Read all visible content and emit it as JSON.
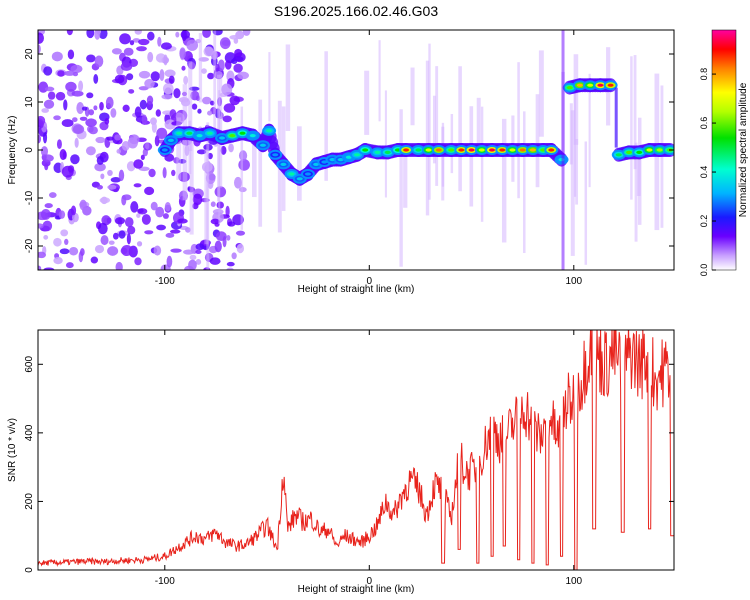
{
  "title": "S196.2025.166.02.46.G03",
  "chart_data": [
    {
      "type": "heatmap",
      "xlabel": "Height of straight line (km)",
      "ylabel": "Frequency (Hz)",
      "xlim": [
        -162,
        149
      ],
      "ylim": [
        -25,
        25
      ],
      "xticks": [
        "-100",
        "0",
        "100"
      ],
      "yticks": [
        "-20",
        "-10",
        "0",
        "10",
        "20"
      ],
      "xtick_values": [
        -100,
        0,
        100
      ],
      "ytick_values": [
        -20,
        -10,
        0,
        10,
        20
      ],
      "colorbar": {
        "label": "Normalized spectral amplitude",
        "ticks": [
          "0.0",
          "0.2",
          "0.4",
          "0.6",
          "0.8"
        ],
        "tick_values": [
          0.0,
          0.2,
          0.4,
          0.6,
          0.8
        ],
        "range": [
          0,
          0.98
        ]
      },
      "ridge": [
        {
          "x": -100,
          "y": 0,
          "amp": 0.3
        },
        {
          "x": -97,
          "y": 2,
          "amp": 0.35
        },
        {
          "x": -93,
          "y": 3.5,
          "amp": 0.45
        },
        {
          "x": -88,
          "y": 3.5,
          "amp": 0.5
        },
        {
          "x": -83,
          "y": 3,
          "amp": 0.4
        },
        {
          "x": -78,
          "y": 3.5,
          "amp": 0.45
        },
        {
          "x": -72,
          "y": 2.5,
          "amp": 0.35
        },
        {
          "x": -67,
          "y": 3,
          "amp": 0.6
        },
        {
          "x": -62,
          "y": 3.5,
          "amp": 0.55
        },
        {
          "x": -57,
          "y": 3,
          "amp": 0.4
        },
        {
          "x": -52,
          "y": 1,
          "amp": 0.35
        },
        {
          "x": -49,
          "y": 4,
          "amp": 0.45
        },
        {
          "x": -46,
          "y": -1,
          "amp": 0.3
        },
        {
          "x": -42,
          "y": -3,
          "amp": 0.35
        },
        {
          "x": -38,
          "y": -5,
          "amp": 0.45
        },
        {
          "x": -34,
          "y": -6,
          "amp": 0.35
        },
        {
          "x": -30,
          "y": -5,
          "amp": 0.3
        },
        {
          "x": -26,
          "y": -3,
          "amp": 0.35
        },
        {
          "x": -22,
          "y": -2.5,
          "amp": 0.3
        },
        {
          "x": -18,
          "y": -2,
          "amp": 0.35
        },
        {
          "x": -14,
          "y": -2,
          "amp": 0.35
        },
        {
          "x": -10,
          "y": -1.5,
          "amp": 0.4
        },
        {
          "x": -6,
          "y": -1,
          "amp": 0.45
        },
        {
          "x": -2,
          "y": 0,
          "amp": 0.55
        },
        {
          "x": 4,
          "y": -0.5,
          "amp": 0.45
        },
        {
          "x": 9,
          "y": -0.5,
          "amp": 0.5
        },
        {
          "x": 14,
          "y": 0,
          "amp": 0.55
        },
        {
          "x": 18,
          "y": 0,
          "amp": 0.9
        },
        {
          "x": 24,
          "y": 0,
          "amp": 0.5
        },
        {
          "x": 29,
          "y": 0,
          "amp": 0.7
        },
        {
          "x": 34,
          "y": 0,
          "amp": 0.85
        },
        {
          "x": 40,
          "y": 0,
          "amp": 0.6
        },
        {
          "x": 45,
          "y": 0,
          "amp": 0.9
        },
        {
          "x": 50,
          "y": 0,
          "amp": 0.95
        },
        {
          "x": 55,
          "y": 0,
          "amp": 0.7
        },
        {
          "x": 60,
          "y": 0,
          "amp": 0.95
        },
        {
          "x": 65,
          "y": 0,
          "amp": 0.9
        },
        {
          "x": 70,
          "y": 0,
          "amp": 0.7
        },
        {
          "x": 75,
          "y": 0,
          "amp": 0.85
        },
        {
          "x": 80,
          "y": 0,
          "amp": 0.8
        },
        {
          "x": 85,
          "y": 0,
          "amp": 0.6
        },
        {
          "x": 89,
          "y": 0,
          "amp": 0.9
        },
        {
          "x": 94,
          "y": -2,
          "amp": 0.4
        },
        {
          "x": 98,
          "y": 13,
          "amp": 0.6
        },
        {
          "x": 103,
          "y": 13.5,
          "amp": 0.8
        },
        {
          "x": 108,
          "y": 13.5,
          "amp": 0.7
        },
        {
          "x": 113,
          "y": 13.5,
          "amp": 0.95
        },
        {
          "x": 118,
          "y": 13.5,
          "amp": 0.9
        },
        {
          "x": 122,
          "y": -1,
          "amp": 0.5
        },
        {
          "x": 127,
          "y": -0.5,
          "amp": 0.6
        },
        {
          "x": 132,
          "y": -0.5,
          "amp": 0.55
        },
        {
          "x": 137,
          "y": 0,
          "amp": 0.7
        },
        {
          "x": 142,
          "y": 0,
          "amp": 0.65
        },
        {
          "x": 147,
          "y": 0,
          "amp": 0.6
        }
      ]
    },
    {
      "type": "line",
      "xlabel": "Height of straight line (km)",
      "ylabel": "SNR (10 * v/v)",
      "xlim": [
        -162,
        149
      ],
      "ylim": [
        0,
        700
      ],
      "xticks": [
        "-100",
        "0",
        "100"
      ],
      "yticks": [
        "0",
        "200",
        "400",
        "600"
      ],
      "xtick_values": [
        -100,
        0,
        100
      ],
      "ytick_values": [
        0,
        200,
        400,
        600
      ],
      "color": "#e8231c",
      "series": [
        {
          "x": [
            -162,
            -150,
            -140,
            -130,
            -120,
            -110,
            -100,
            -95,
            -90,
            -85,
            -80,
            -75,
            -70,
            -65,
            -60,
            -55,
            -50,
            -45,
            -42,
            -40,
            -36,
            -32,
            -28,
            -24,
            -20,
            -16,
            -12,
            -8,
            -4,
            0,
            4,
            8,
            12,
            16,
            20,
            24,
            28,
            32,
            36,
            40,
            44,
            48,
            52,
            56,
            60,
            64,
            68,
            72,
            76,
            80,
            84,
            88,
            92,
            96,
            100,
            104,
            108,
            112,
            116,
            120,
            124,
            128,
            132,
            136,
            140,
            144,
            148
          ],
          "y": [
            20,
            22,
            25,
            24,
            28,
            30,
            40,
            60,
            80,
            100,
            90,
            110,
            80,
            70,
            75,
            100,
            130,
            60,
            300,
            120,
            160,
            140,
            150,
            110,
            120,
            70,
            100,
            90,
            80,
            100,
            130,
            200,
            160,
            220,
            260,
            240,
            160,
            250,
            230,
            150,
            330,
            280,
            300,
            350,
            420,
            380,
            400,
            440,
            480,
            420,
            380,
            460,
            380,
            480,
            500,
            560,
            660,
            620,
            600,
            640,
            580,
            640,
            600,
            620,
            560,
            580,
            600
          ],
          "dips": [
            {
              "x": 36,
              "y": 20
            },
            {
              "x": 44,
              "y": 60
            },
            {
              "x": 53,
              "y": 20
            },
            {
              "x": 60,
              "y": 40
            },
            {
              "x": 66,
              "y": 70
            },
            {
              "x": 73,
              "y": 30
            },
            {
              "x": 80,
              "y": 20
            },
            {
              "x": 87,
              "y": 15
            },
            {
              "x": 94,
              "y": 40
            },
            {
              "x": 101,
              "y": 0
            },
            {
              "x": 110,
              "y": 120
            },
            {
              "x": 124,
              "y": 110
            },
            {
              "x": 137,
              "y": 120
            },
            {
              "x": 148,
              "y": 100
            }
          ]
        }
      ]
    }
  ]
}
